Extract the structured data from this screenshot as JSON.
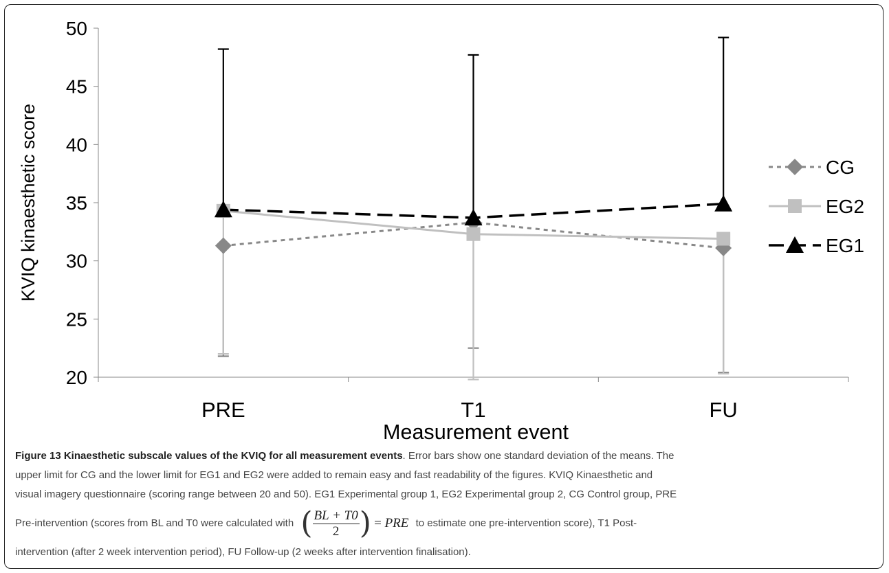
{
  "chart_data": {
    "type": "line",
    "title": "",
    "xlabel": "Measurement event",
    "ylabel": "KVIQ kinaesthetic score",
    "categories": [
      "PRE",
      "T1",
      "FU"
    ],
    "ylim": [
      20,
      50
    ],
    "yticks": [
      20,
      25,
      30,
      35,
      40,
      45,
      50
    ],
    "legend_position": "right",
    "grid": false,
    "series": [
      {
        "name": "CG",
        "values": [
          31.3,
          33.3,
          31.1
        ],
        "error_low": [
          21.8,
          22.5,
          20.4
        ],
        "error_high": null,
        "color": "#888888",
        "marker": "diamond",
        "line_style": "dotted"
      },
      {
        "name": "EG2",
        "values": [
          34.3,
          32.3,
          31.9
        ],
        "error_low": [
          22.0,
          19.8,
          20.3
        ],
        "error_high": null,
        "color": "#c0c0c0",
        "marker": "square",
        "line_style": "solid"
      },
      {
        "name": "EG1",
        "values": [
          34.4,
          33.7,
          34.9
        ],
        "error_low": null,
        "error_high": [
          48.2,
          47.7,
          49.2
        ],
        "color": "#000000",
        "marker": "triangle",
        "line_style": "dashed"
      }
    ]
  },
  "caption": {
    "figure_title": "Figure 13 Kinaesthetic subscale values of the KVIQ for all measurement events",
    "line1_rest": ". Error bars show one standard deviation of the means. The",
    "line2": "upper limit for CG and the lower limit for EG1 and EG2 were added to remain easy and fast readability of the figures. KVIQ Kinaesthetic and",
    "line3": "visual imagery questionnaire (scoring range between 20 and 50). EG1 Experimental group 1, EG2 Experimental group 2, CG Control group, PRE",
    "line4_before": "Pre-intervention (scores from BL and T0 were calculated with",
    "formula_num": "BL + T0",
    "formula_den": "2",
    "formula_eq": "= ",
    "formula_result": "PRE",
    "line4_after": "to estimate one pre-intervention score), T1 Post-",
    "line5": "intervention (after 2 week intervention period), FU Follow-up (2 weeks after intervention finalisation)."
  }
}
